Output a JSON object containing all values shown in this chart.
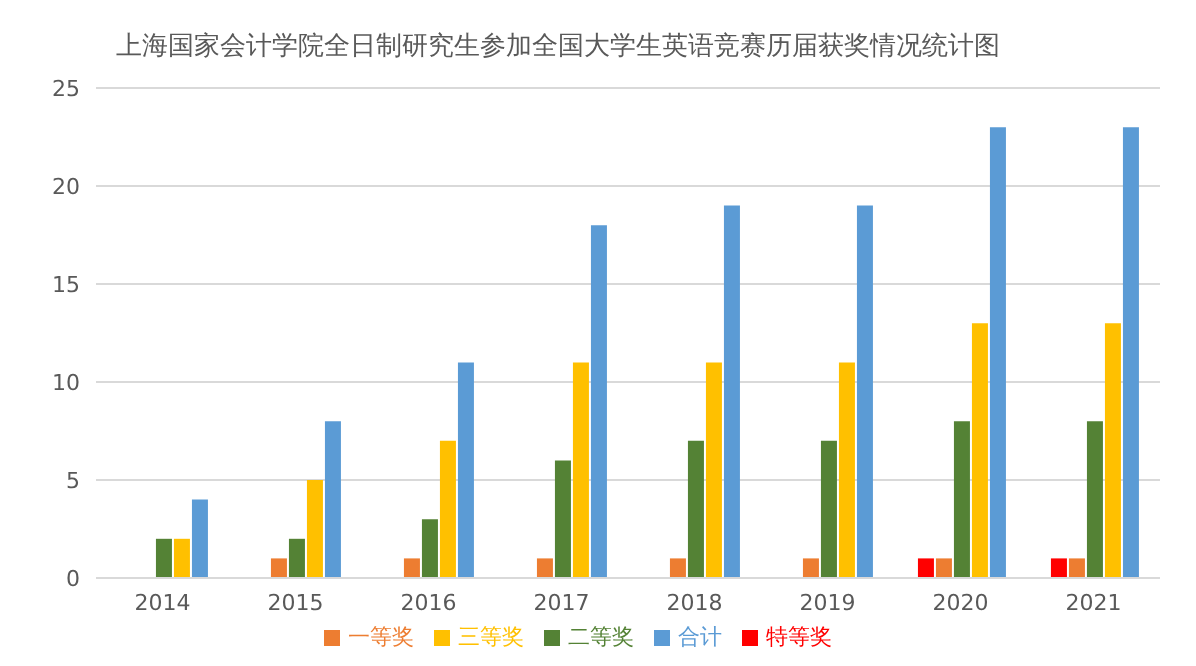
{
  "chart_data": {
    "type": "bar",
    "title": "上海国家会计学院全日制研究生参加全国大学生英语竞赛历届获奖情况统计图",
    "categories": [
      "2014",
      "2015",
      "2016",
      "2017",
      "2018",
      "2019",
      "2020",
      "2021"
    ],
    "series": [
      {
        "name": "特等奖",
        "color": "#ff0000",
        "values": [
          0,
          0,
          0,
          0,
          0,
          0,
          1,
          1
        ]
      },
      {
        "name": "一等奖",
        "color": "#ed7d31",
        "values": [
          0,
          1,
          1,
          1,
          1,
          1,
          1,
          1
        ]
      },
      {
        "name": "二等奖",
        "color": "#548235",
        "values": [
          2,
          2,
          3,
          6,
          7,
          7,
          8,
          8
        ]
      },
      {
        "name": "三等奖",
        "color": "#ffc000",
        "values": [
          2,
          5,
          7,
          11,
          11,
          11,
          13,
          13
        ]
      },
      {
        "name": "合计",
        "color": "#5b9bd5",
        "values": [
          4,
          8,
          11,
          18,
          19,
          19,
          23,
          23
        ]
      }
    ],
    "ylim": [
      0,
      25
    ],
    "yticks": [
      0,
      5,
      10,
      15,
      20,
      25
    ],
    "grid": "y",
    "legend": "bottom"
  }
}
